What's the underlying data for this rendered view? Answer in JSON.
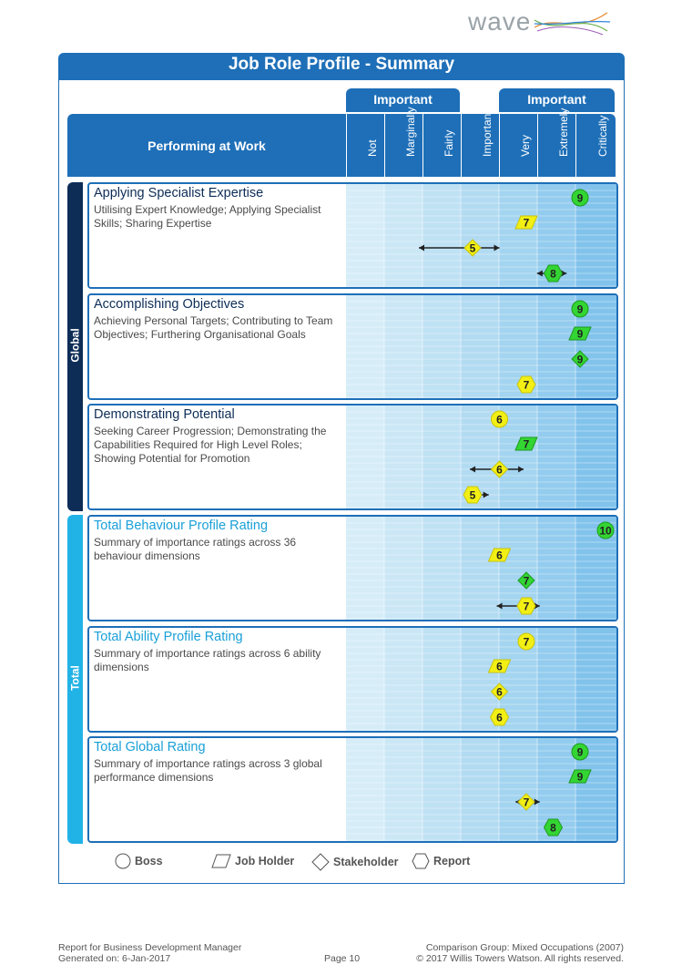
{
  "brand": {
    "logo_text": "wave"
  },
  "title": "Job Role Profile - Summary",
  "header": {
    "important_left": "Important",
    "important_right": "Important",
    "section_label": "Performing at Work",
    "columns": [
      "Not",
      "Marginally",
      "Fairly",
      "Important",
      "Very",
      "Extremely",
      "Critically"
    ]
  },
  "side_labels": {
    "global": "Global",
    "total": "Total"
  },
  "colors": {
    "accent": "#1e6fb8",
    "total_side": "#22b3e6",
    "global_side": "#0d2d57",
    "marker_green": "#33d533",
    "marker_yellow": "#f2ef15"
  },
  "rows": [
    {
      "title": "Applying Specialist Expertise",
      "title_style": "dark",
      "desc": "Utilising Expert Knowledge; Applying Specialist Skills; Sharing Expertise",
      "markers": [
        {
          "shape": "circle",
          "value": 9,
          "color": "green"
        },
        {
          "shape": "parallelogram",
          "value": 7,
          "color": "yellow"
        },
        {
          "shape": "diamond",
          "value": 5,
          "color": "yellow",
          "range": [
            3.0,
            6.0
          ]
        },
        {
          "shape": "hexagon",
          "value": 8,
          "color": "green",
          "range": [
            7.4,
            8.5
          ]
        }
      ]
    },
    {
      "title": "Accomplishing Objectives",
      "title_style": "dark",
      "desc": "Achieving Personal Targets; Contributing to Team Objectives; Furthering Organisational Goals",
      "markers": [
        {
          "shape": "circle",
          "value": 9,
          "color": "green"
        },
        {
          "shape": "parallelogram",
          "value": 9,
          "color": "green"
        },
        {
          "shape": "diamond",
          "value": 9,
          "color": "green"
        },
        {
          "shape": "hexagon",
          "value": 7,
          "color": "yellow"
        }
      ]
    },
    {
      "title": "Demonstrating Potential",
      "title_style": "dark",
      "desc": "Seeking Career Progression; Demonstrating the Capabilities Required for High Level Roles; Showing Potential for Promotion",
      "markers": [
        {
          "shape": "circle",
          "value": 6,
          "color": "yellow"
        },
        {
          "shape": "parallelogram",
          "value": 7,
          "color": "green"
        },
        {
          "shape": "diamond",
          "value": 6,
          "color": "yellow",
          "range": [
            4.9,
            6.9
          ]
        },
        {
          "shape": "hexagon",
          "value": 5,
          "color": "yellow",
          "range": [
            4.9,
            5.6
          ]
        }
      ]
    },
    {
      "title": "Total Behaviour Profile Rating",
      "title_style": "light",
      "desc": "Summary of importance ratings across 36 behaviour dimensions",
      "markers": [
        {
          "shape": "circle",
          "value": 10,
          "color": "green"
        },
        {
          "shape": "parallelogram",
          "value": 6,
          "color": "yellow"
        },
        {
          "shape": "diamond",
          "value": 7,
          "color": "green"
        },
        {
          "shape": "hexagon",
          "value": 7,
          "color": "yellow",
          "range": [
            5.9,
            7.5
          ]
        }
      ]
    },
    {
      "title": "Total Ability Profile Rating",
      "title_style": "light",
      "desc": "Summary of importance ratings across 6 ability dimensions",
      "markers": [
        {
          "shape": "circle",
          "value": 7,
          "color": "yellow"
        },
        {
          "shape": "parallelogram",
          "value": 6,
          "color": "yellow"
        },
        {
          "shape": "diamond",
          "value": 6,
          "color": "yellow"
        },
        {
          "shape": "hexagon",
          "value": 6,
          "color": "yellow"
        }
      ]
    },
    {
      "title": "Total Global Rating",
      "title_style": "light",
      "desc": "Summary of importance ratings across 3 global performance dimensions",
      "markers": [
        {
          "shape": "circle",
          "value": 9,
          "color": "green"
        },
        {
          "shape": "parallelogram",
          "value": 9,
          "color": "green"
        },
        {
          "shape": "diamond",
          "value": 7,
          "color": "yellow",
          "range": [
            6.6,
            7.5
          ]
        },
        {
          "shape": "hexagon",
          "value": 8,
          "color": "green"
        }
      ]
    }
  ],
  "legend": [
    "Boss",
    "Job Holder",
    "Stakeholder",
    "Report"
  ],
  "footer": {
    "left1": "Report for Business Development Manager",
    "left2": "Generated on: 6-Jan-2017",
    "center": "Page 10",
    "right1": "Comparison Group: Mixed Occupations (2007)",
    "right2": "© 2017 Willis Towers Watson. All rights reserved."
  }
}
